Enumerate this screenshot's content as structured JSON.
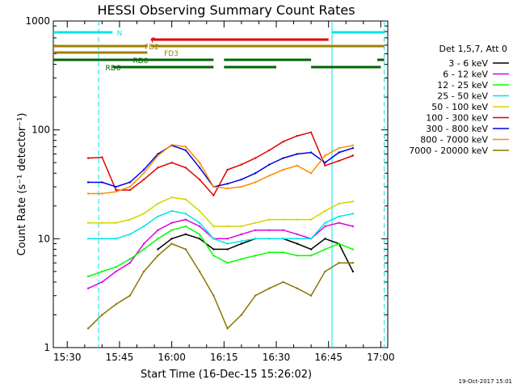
{
  "chart_data": {
    "type": "line",
    "title": "HESSI Observing Summary Count Rates",
    "xlabel": "Start Time (16-Dec-15 15:26:02)",
    "ylabel": "Count Rate (s⁻¹ detector⁻¹)",
    "yscale": "log",
    "xlim": [
      "15:26",
      "17:02"
    ],
    "ylim": [
      1,
      1000
    ],
    "x_ticks": [
      "15:30",
      "15:45",
      "16:00",
      "16:15",
      "16:30",
      "16:45",
      "17:00"
    ],
    "y_ticks": [
      "1",
      "10",
      "100",
      "1000"
    ],
    "x_tick_minutes": [
      30,
      45,
      60,
      75,
      90,
      105,
      120
    ],
    "y_tick_values": [
      1,
      10,
      100,
      1000
    ],
    "timestamp": "19-Oct-2017 15:01",
    "legend": {
      "placement": "right",
      "header": "Det 1,5,7, Att 0"
    },
    "flags": [
      {
        "label": "N",
        "color": "#00e5e5",
        "segments": [
          [
            "15:26",
            "15:43"
          ],
          [
            "16:46",
            "17:01"
          ]
        ]
      },
      {
        "label": "F",
        "color": "#e00000",
        "segments": [
          [
            "15:54",
            "16:45"
          ]
        ]
      },
      {
        "label": "FD2",
        "color": "#a08000",
        "segments": [
          [
            "15:26",
            "15:53"
          ],
          [
            "15:54",
            "17:01"
          ]
        ]
      },
      {
        "label": "FD3",
        "color": "#a08000",
        "segments": [
          [
            "15:26",
            "15:53"
          ]
        ]
      },
      {
        "label": "RD0",
        "color": "#006400",
        "segments": [
          [
            "15:26",
            "16:12"
          ],
          [
            "16:15",
            "16:40"
          ],
          [
            "16:59",
            "17:01"
          ]
        ]
      },
      {
        "label": "RD6",
        "color": "#006400",
        "segments": [
          [
            "15:43",
            "16:12"
          ],
          [
            "16:15",
            "16:30"
          ],
          [
            "16:40",
            "17:00"
          ]
        ]
      }
    ],
    "vlines": [
      {
        "time": "15:39",
        "color": "#00e5e5",
        "style": "dashed"
      },
      {
        "time": "16:46",
        "color": "#00e5e5",
        "style": "solid"
      },
      {
        "time": "17:01",
        "color": "#00e5e5",
        "style": "dashed"
      }
    ],
    "x": [
      "15:36",
      "15:40",
      "15:44",
      "15:48",
      "15:52",
      "15:56",
      "16:00",
      "16:04",
      "16:08",
      "16:12",
      "16:16",
      "16:20",
      "16:24",
      "16:28",
      "16:32",
      "16:36",
      "16:40",
      "16:44",
      "16:48",
      "16:52"
    ],
    "series": [
      {
        "name": "3 - 6 keV",
        "color": "#000000",
        "values": [
          null,
          null,
          null,
          null,
          null,
          8,
          10,
          11,
          10,
          8,
          8,
          9,
          10,
          10,
          10,
          9,
          8,
          10,
          9,
          5
        ]
      },
      {
        "name": "6 - 12 keV",
        "color": "#e000e0",
        "values": [
          3.5,
          4,
          5,
          6,
          9,
          12,
          14,
          15,
          13,
          10,
          10,
          11,
          12,
          12,
          12,
          11,
          10,
          13,
          14,
          13
        ]
      },
      {
        "name": "12 - 25 keV",
        "color": "#00ff00",
        "values": [
          4.5,
          5,
          5.5,
          6.5,
          8,
          10,
          12,
          13,
          11,
          7,
          6,
          6.5,
          7,
          7.5,
          7.5,
          7,
          7,
          8,
          9,
          8
        ]
      },
      {
        "name": "25 - 50 keV",
        "color": "#00e5e5",
        "values": [
          10,
          10,
          10,
          11,
          13,
          16,
          18,
          17,
          14,
          10,
          9,
          9.5,
          10,
          10,
          10,
          10,
          10,
          14,
          16,
          17
        ]
      },
      {
        "name": "50 - 100 keV",
        "color": "#d4d400",
        "values": [
          14,
          14,
          14,
          15,
          17,
          21,
          24,
          23,
          18,
          13,
          13,
          13,
          14,
          15,
          15,
          15,
          15,
          18,
          21,
          22
        ]
      },
      {
        "name": "100 - 300 keV",
        "color": "#e00000",
        "values": [
          55,
          56,
          28,
          28,
          35,
          45,
          50,
          45,
          35,
          25,
          43,
          48,
          55,
          65,
          78,
          88,
          95,
          47,
          52,
          58
        ]
      },
      {
        "name": "300 - 800 keV",
        "color": "#0000e0",
        "values": [
          33,
          33,
          30,
          33,
          43,
          60,
          72,
          65,
          45,
          30,
          32,
          35,
          40,
          48,
          55,
          60,
          62,
          50,
          62,
          68
        ]
      },
      {
        "name": "800 - 7000 keV",
        "color": "#ff8c00",
        "values": [
          26,
          26,
          27,
          30,
          40,
          58,
          73,
          70,
          50,
          30,
          29,
          30,
          33,
          38,
          43,
          47,
          40,
          58,
          68,
          72
        ]
      },
      {
        "name": "7000 - 20000 keV",
        "color": "#8b7500",
        "values": [
          1.5,
          2,
          2.5,
          3,
          5,
          7,
          9,
          8,
          5,
          3,
          1.5,
          2,
          3,
          3.5,
          4,
          3.5,
          3,
          5,
          6,
          6
        ]
      }
    ]
  }
}
